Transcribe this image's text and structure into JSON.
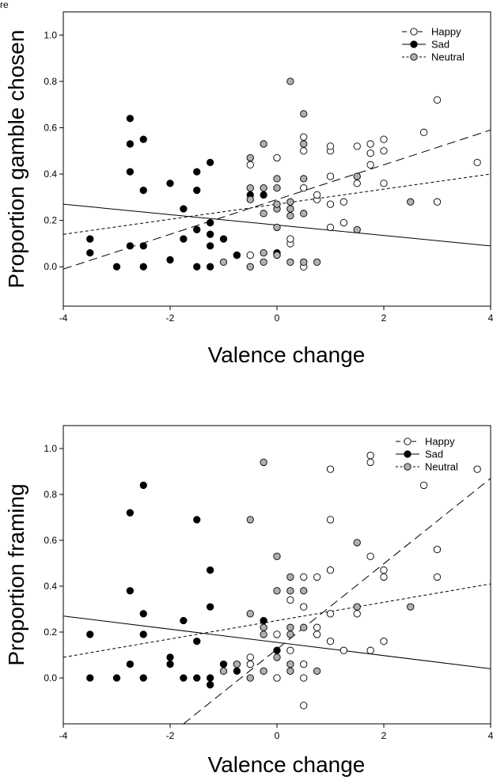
{
  "figure": {
    "top_fragment": "re"
  },
  "chart_data": [
    {
      "type": "scatter",
      "xlabel": "Valence change",
      "ylabel": "Proportion gamble chosen",
      "xlim": [
        -4,
        4
      ],
      "ylim": [
        -0.17,
        1.1
      ],
      "xticks": [
        "-4",
        "-2",
        "0",
        "2",
        "4"
      ],
      "yticks": [
        "0.0",
        "0.2",
        "0.4",
        "0.6",
        "0.8",
        "1.0"
      ],
      "legend_position": "top-right",
      "series": [
        {
          "name": "Happy",
          "color": "#ffffff",
          "line_style": "long-dash",
          "regression": [
            [
              -4,
              -0.01
            ],
            [
              4,
              0.59
            ]
          ],
          "points": [
            [
              -0.75,
              0.05
            ],
            [
              -0.5,
              0.05
            ],
            [
              -0.5,
              0.44
            ],
            [
              0,
              0.47
            ],
            [
              0.25,
              0.1
            ],
            [
              0.25,
              0.12
            ],
            [
              0.5,
              0.0
            ],
            [
              0.5,
              0.34
            ],
            [
              0.5,
              0.5
            ],
            [
              0.5,
              0.56
            ],
            [
              0.75,
              0.29
            ],
            [
              0.75,
              0.31
            ],
            [
              1,
              0.17
            ],
            [
              1,
              0.27
            ],
            [
              1,
              0.39
            ],
            [
              1,
              0.5
            ],
            [
              1,
              0.52
            ],
            [
              1.25,
              0.19
            ],
            [
              1.25,
              0.28
            ],
            [
              1.5,
              0.36
            ],
            [
              1.5,
              0.52
            ],
            [
              1.75,
              0.44
            ],
            [
              1.75,
              0.49
            ],
            [
              1.75,
              0.53
            ],
            [
              2,
              0.36
            ],
            [
              2,
              0.5
            ],
            [
              2,
              0.55
            ],
            [
              2.75,
              0.58
            ],
            [
              3,
              0.28
            ],
            [
              3,
              0.72
            ],
            [
              3.75,
              0.45
            ]
          ]
        },
        {
          "name": "Sad",
          "color": "#000000",
          "line_style": "solid",
          "regression": [
            [
              -4,
              0.27
            ],
            [
              4,
              0.09
            ]
          ],
          "points": [
            [
              -3.5,
              0.06
            ],
            [
              -3.5,
              0.12
            ],
            [
              -3,
              0.0
            ],
            [
              -2.75,
              0.09
            ],
            [
              -2.75,
              0.41
            ],
            [
              -2.75,
              0.53
            ],
            [
              -2.75,
              0.64
            ],
            [
              -2.5,
              0.0
            ],
            [
              -2.5,
              0.09
            ],
            [
              -2.5,
              0.33
            ],
            [
              -2.5,
              0.55
            ],
            [
              -2,
              0.03
            ],
            [
              -2,
              0.36
            ],
            [
              -1.75,
              0.12
            ],
            [
              -1.75,
              0.25
            ],
            [
              -1.5,
              0.0
            ],
            [
              -1.5,
              0.16
            ],
            [
              -1.5,
              0.33
            ],
            [
              -1.5,
              0.41
            ],
            [
              -1.25,
              0.0
            ],
            [
              -1.25,
              0.09
            ],
            [
              -1.25,
              0.14
            ],
            [
              -1.25,
              0.19
            ],
            [
              -1.25,
              0.45
            ],
            [
              -1,
              0.12
            ],
            [
              -0.75,
              0.05
            ],
            [
              -0.5,
              0.31
            ],
            [
              -0.25,
              0.31
            ],
            [
              0,
              0.06
            ]
          ]
        },
        {
          "name": "Neutral",
          "color": "#b0b0b0",
          "line_style": "short-dash",
          "regression": [
            [
              -4,
              0.14
            ],
            [
              4,
              0.4
            ]
          ],
          "points": [
            [
              -1,
              0.02
            ],
            [
              -0.5,
              0.0
            ],
            [
              -0.5,
              0.29
            ],
            [
              -0.5,
              0.34
            ],
            [
              -0.5,
              0.47
            ],
            [
              -0.25,
              0.02
            ],
            [
              -0.25,
              0.06
            ],
            [
              -0.25,
              0.23
            ],
            [
              -0.25,
              0.34
            ],
            [
              -0.25,
              0.53
            ],
            [
              0,
              0.05
            ],
            [
              0,
              0.17
            ],
            [
              0,
              0.25
            ],
            [
              0,
              0.27
            ],
            [
              0,
              0.34
            ],
            [
              0,
              0.38
            ],
            [
              0.25,
              0.02
            ],
            [
              0.25,
              0.22
            ],
            [
              0.25,
              0.25
            ],
            [
              0.25,
              0.28
            ],
            [
              0.25,
              0.8
            ],
            [
              0.5,
              0.02
            ],
            [
              0.5,
              0.23
            ],
            [
              0.5,
              0.38
            ],
            [
              0.5,
              0.53
            ],
            [
              0.5,
              0.66
            ],
            [
              0.75,
              0.02
            ],
            [
              1.5,
              0.16
            ],
            [
              1.5,
              0.39
            ],
            [
              2.5,
              0.28
            ]
          ]
        }
      ]
    },
    {
      "type": "scatter",
      "xlabel": "Valence change",
      "ylabel": "Proportion framing",
      "xlim": [
        -4,
        4
      ],
      "ylim": [
        -0.2,
        1.1
      ],
      "xticks": [
        "-4",
        "-2",
        "0",
        "2",
        "4"
      ],
      "yticks": [
        "0.0",
        "0.2",
        "0.4",
        "0.6",
        "0.8",
        "1.0"
      ],
      "legend_position": "top-right",
      "series": [
        {
          "name": "Happy",
          "color": "#ffffff",
          "line_style": "long-dash",
          "regression": [
            [
              -1.75,
              -0.2
            ],
            [
              4,
              0.87
            ]
          ],
          "points": [
            [
              -0.5,
              0.06
            ],
            [
              -0.5,
              0.09
            ],
            [
              0,
              0.0
            ],
            [
              0,
              0.19
            ],
            [
              0.25,
              0.12
            ],
            [
              0.25,
              0.34
            ],
            [
              0.5,
              -0.12
            ],
            [
              0.5,
              0.0
            ],
            [
              0.5,
              0.06
            ],
            [
              0.5,
              0.31
            ],
            [
              0.5,
              0.44
            ],
            [
              0.75,
              0.19
            ],
            [
              0.75,
              0.22
            ],
            [
              0.75,
              0.44
            ],
            [
              1,
              0.16
            ],
            [
              1,
              0.28
            ],
            [
              1,
              0.47
            ],
            [
              1,
              0.69
            ],
            [
              1,
              0.91
            ],
            [
              1.25,
              0.12
            ],
            [
              1.5,
              0.28
            ],
            [
              1.75,
              0.12
            ],
            [
              1.75,
              0.53
            ],
            [
              1.75,
              0.94
            ],
            [
              1.75,
              0.97
            ],
            [
              2,
              0.16
            ],
            [
              2,
              0.44
            ],
            [
              2,
              0.47
            ],
            [
              2.75,
              0.84
            ],
            [
              3,
              0.44
            ],
            [
              3,
              0.56
            ],
            [
              3.75,
              0.91
            ]
          ]
        },
        {
          "name": "Sad",
          "color": "#000000",
          "line_style": "solid",
          "regression": [
            [
              -4,
              0.27
            ],
            [
              4,
              0.04
            ]
          ],
          "points": [
            [
              -3.5,
              0.0
            ],
            [
              -3.5,
              0.19
            ],
            [
              -3,
              0.0
            ],
            [
              -2.75,
              0.06
            ],
            [
              -2.75,
              0.38
            ],
            [
              -2.75,
              0.72
            ],
            [
              -2.5,
              0.0
            ],
            [
              -2.5,
              0.19
            ],
            [
              -2.5,
              0.28
            ],
            [
              -2.5,
              0.84
            ],
            [
              -2,
              0.06
            ],
            [
              -2,
              0.09
            ],
            [
              -1.75,
              0.0
            ],
            [
              -1.75,
              0.25
            ],
            [
              -1.5,
              0.0
            ],
            [
              -1.5,
              0.16
            ],
            [
              -1.5,
              0.69
            ],
            [
              -1.25,
              -0.03
            ],
            [
              -1.25,
              0.0
            ],
            [
              -1.25,
              0.31
            ],
            [
              -1.25,
              0.47
            ],
            [
              -1,
              0.06
            ],
            [
              -0.75,
              0.03
            ],
            [
              -0.25,
              0.25
            ],
            [
              0,
              0.12
            ]
          ]
        },
        {
          "name": "Neutral",
          "color": "#b0b0b0",
          "line_style": "short-dash",
          "regression": [
            [
              -4,
              0.09
            ],
            [
              4,
              0.41
            ]
          ],
          "points": [
            [
              -1,
              0.03
            ],
            [
              -0.75,
              0.06
            ],
            [
              -0.5,
              0.0
            ],
            [
              -0.5,
              0.28
            ],
            [
              -0.5,
              0.69
            ],
            [
              -0.25,
              0.03
            ],
            [
              -0.25,
              0.19
            ],
            [
              -0.25,
              0.22
            ],
            [
              -0.25,
              0.94
            ],
            [
              0,
              0.09
            ],
            [
              0,
              0.38
            ],
            [
              0,
              0.53
            ],
            [
              0.25,
              0.03
            ],
            [
              0.25,
              0.06
            ],
            [
              0.25,
              0.19
            ],
            [
              0.25,
              0.22
            ],
            [
              0.25,
              0.38
            ],
            [
              0.25,
              0.44
            ],
            [
              0.5,
              0.22
            ],
            [
              0.5,
              0.38
            ],
            [
              0.75,
              0.03
            ],
            [
              1.5,
              0.31
            ],
            [
              1.5,
              0.59
            ],
            [
              2.5,
              0.31
            ]
          ]
        }
      ]
    }
  ]
}
